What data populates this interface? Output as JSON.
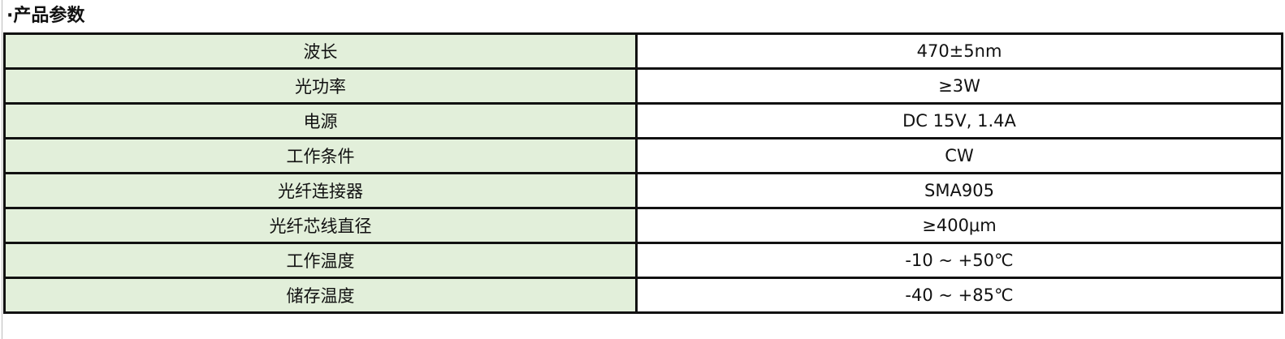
{
  "title": "·产品参数",
  "colors": {
    "label_bg": "#e2efda",
    "value_bg": "#ffffff",
    "border": "#111111"
  },
  "rows": [
    {
      "label": "波长",
      "value": "470±5nm"
    },
    {
      "label": "光功率",
      "value": "≥3W"
    },
    {
      "label": "电源",
      "value": "DC 15V, 1.4A"
    },
    {
      "label": "工作条件",
      "value": "CW"
    },
    {
      "label": "光纤连接器",
      "value": "SMA905"
    },
    {
      "label": "光纤芯线直径",
      "value": "≥400μm"
    },
    {
      "label": "工作温度",
      "value": "-10 ~ +50℃"
    },
    {
      "label": "储存温度",
      "value": "-40 ~ +85℃"
    }
  ]
}
